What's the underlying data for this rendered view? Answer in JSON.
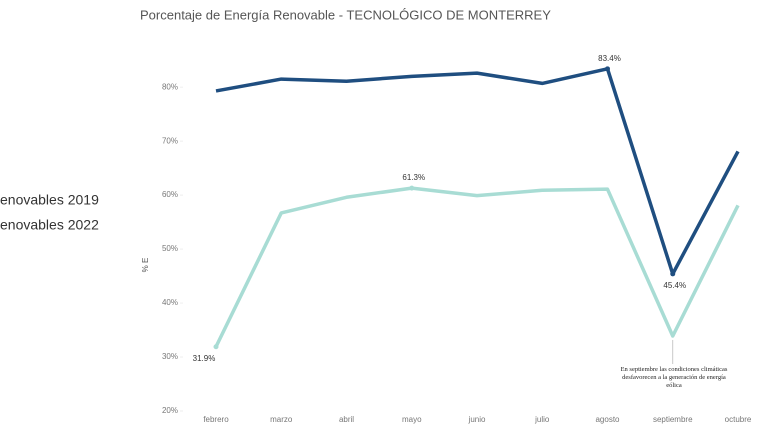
{
  "chart_data": {
    "type": "line",
    "title": "Porcentaje de Energía Renovable - TECNOLÓGICO DE MONTERREY",
    "ylabel": "% E",
    "categories": [
      "febrero",
      "marzo",
      "abril",
      "mayo",
      "junio",
      "julio",
      "agosto",
      "septiembre",
      "octubre"
    ],
    "series": [
      {
        "name": "enovables 2019",
        "color": "#1f4e80",
        "values": [
          79.3,
          81.5,
          81.1,
          82.0,
          82.6,
          80.7,
          83.4,
          45.4,
          68.1
        ],
        "value_labels": [
          null,
          null,
          null,
          null,
          null,
          null,
          "83.4%",
          "45.4%",
          null
        ]
      },
      {
        "name": "enovables 2022",
        "color": "#a8dcd4",
        "values": [
          31.9,
          56.7,
          59.6,
          61.3,
          59.9,
          60.9,
          61.1,
          33.9,
          58.1
        ],
        "value_labels": [
          "31.9%",
          null,
          null,
          "61.3%",
          null,
          null,
          null,
          null,
          null
        ]
      }
    ],
    "ylim": [
      20,
      88
    ],
    "yticks": [
      {
        "value": 20,
        "label": "20%"
      },
      {
        "value": 30,
        "label": "30%"
      },
      {
        "value": 40,
        "label": "40%"
      },
      {
        "value": 50,
        "label": "50%"
      },
      {
        "value": 60,
        "label": "60%"
      },
      {
        "value": 70,
        "label": "70%"
      },
      {
        "value": 80,
        "label": "80%"
      }
    ],
    "annotation": "En septiembre las condiciones climáticas desfavorecen a la generación de energía eólica"
  }
}
